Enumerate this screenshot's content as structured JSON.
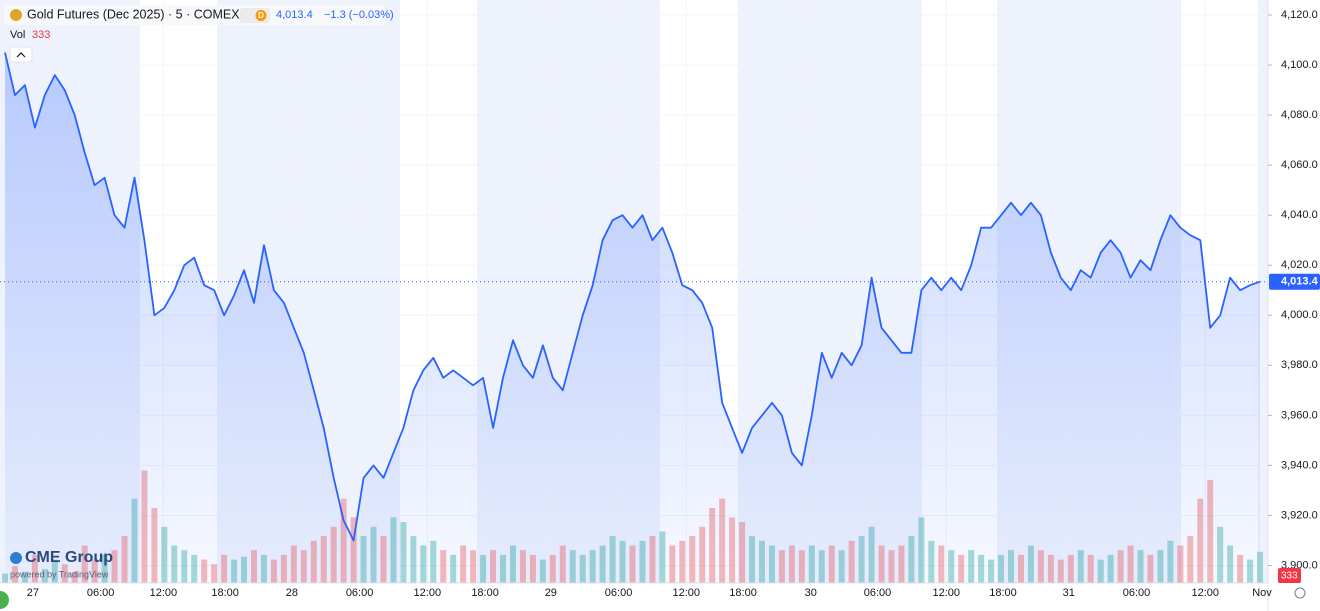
{
  "chart_data": {
    "type": "line",
    "title": "Gold Futures (Dec 2025) · 5 · COMEX",
    "badge": "D",
    "price": "4,013.4",
    "change": "−1.3 (−0.03%)",
    "volume_label": "Vol",
    "volume_last": "333",
    "logo": "CME Group",
    "powered_by": "powered by TradingView",
    "color": "#2962ff",
    "ylim": [
      3893,
      4126
    ],
    "yticks": [
      {
        "value": 3900,
        "label": "3,900.0"
      },
      {
        "value": 3920,
        "label": "3,920.0"
      },
      {
        "value": 3940,
        "label": "3,940.0"
      },
      {
        "value": 3960,
        "label": "3,960.0"
      },
      {
        "value": 3980,
        "label": "3,980.0"
      },
      {
        "value": 4000,
        "label": "4,000.0"
      },
      {
        "value": 4020,
        "label": "4,020.0"
      },
      {
        "value": 4040,
        "label": "4,040.0"
      },
      {
        "value": 4060,
        "label": "4,060.0"
      },
      {
        "value": 4080,
        "label": "4,080.0"
      },
      {
        "value": 4100,
        "label": "4,100.0"
      },
      {
        "value": 4120,
        "label": "4,120.0"
      }
    ],
    "xlim": [
      -0.5,
      126.8
    ],
    "xticks": [
      {
        "value": 2.8,
        "label": "27"
      },
      {
        "value": 9.6,
        "label": "06:00"
      },
      {
        "value": 15.9,
        "label": "12:00"
      },
      {
        "value": 22.1,
        "label": "18:00"
      },
      {
        "value": 28.8,
        "label": "28"
      },
      {
        "value": 35.6,
        "label": "06:00"
      },
      {
        "value": 42.4,
        "label": "12:00"
      },
      {
        "value": 48.2,
        "label": "18:00"
      },
      {
        "value": 54.8,
        "label": "29"
      },
      {
        "value": 61.6,
        "label": "06:00"
      },
      {
        "value": 68.4,
        "label": "12:00"
      },
      {
        "value": 74.1,
        "label": "18:00"
      },
      {
        "value": 80.9,
        "label": "30"
      },
      {
        "value": 87.6,
        "label": "06:00"
      },
      {
        "value": 94.5,
        "label": "12:00"
      },
      {
        "value": 100.2,
        "label": "18:00"
      },
      {
        "value": 106.8,
        "label": "31"
      },
      {
        "value": 113.6,
        "label": "06:00"
      },
      {
        "value": 120.5,
        "label": "12:00"
      },
      {
        "value": 126.2,
        "label": "Nov"
      }
    ],
    "grid": true,
    "values": [
      4105,
      4088,
      4092,
      4075,
      4088,
      4096,
      4090,
      4080,
      4065,
      4052,
      4055,
      4040,
      4035,
      4055,
      4030,
      4000,
      4003,
      4010,
      4020,
      4023,
      4012,
      4010,
      4000,
      4008,
      4018,
      4005,
      4028,
      4010,
      4005,
      3995,
      3985,
      3970,
      3955,
      3935,
      3918,
      3910,
      3935,
      3940,
      3935,
      3945,
      3955,
      3970,
      3978,
      3983,
      3975,
      3978,
      3975,
      3972,
      3975,
      3955,
      3975,
      3990,
      3980,
      3975,
      3988,
      3975,
      3970,
      3985,
      4000,
      4012,
      4030,
      4038,
      4040,
      4035,
      4040,
      4030,
      4035,
      4025,
      4012,
      4010,
      4005,
      3995,
      3965,
      3955,
      3945,
      3955,
      3960,
      3965,
      3960,
      3945,
      3940,
      3960,
      3985,
      3975,
      3985,
      3980,
      3988,
      4015,
      3995,
      3990,
      3985,
      3985,
      4010,
      4015,
      4010,
      4015,
      4010,
      4020,
      4035,
      4035,
      4040,
      4045,
      4040,
      4045,
      4040,
      4025,
      4015,
      4010,
      4018,
      4015,
      4025,
      4030,
      4025,
      4015,
      4022,
      4018,
      4030,
      4040,
      4035,
      4032,
      4030,
      3995,
      4000,
      4015,
      4010,
      4012,
      4013.4
    ],
    "volume": [
      100,
      180,
      120,
      300,
      150,
      250,
      200,
      120,
      400,
      250,
      300,
      350,
      500,
      900,
      1200,
      800,
      600,
      400,
      350,
      300,
      250,
      200,
      300,
      250,
      280,
      350,
      300,
      250,
      300,
      400,
      350,
      450,
      500,
      600,
      900,
      700,
      500,
      600,
      500,
      700,
      650,
      500,
      400,
      450,
      350,
      300,
      400,
      350,
      300,
      350,
      300,
      400,
      350,
      300,
      250,
      300,
      400,
      350,
      300,
      350,
      400,
      500,
      450,
      400,
      450,
      500,
      550,
      400,
      450,
      500,
      600,
      800,
      900,
      700,
      650,
      500,
      450,
      400,
      350,
      400,
      350,
      400,
      350,
      400,
      350,
      450,
      500,
      600,
      400,
      350,
      400,
      500,
      700,
      450,
      400,
      350,
      300,
      350,
      300,
      250,
      300,
      350,
      300,
      400,
      350,
      300,
      250,
      300,
      350,
      300,
      250,
      300,
      350,
      400,
      350,
      300,
      350,
      450,
      400,
      500,
      900,
      1100,
      600,
      400,
      300,
      250,
      333
    ],
    "volume_max": 1600
  }
}
